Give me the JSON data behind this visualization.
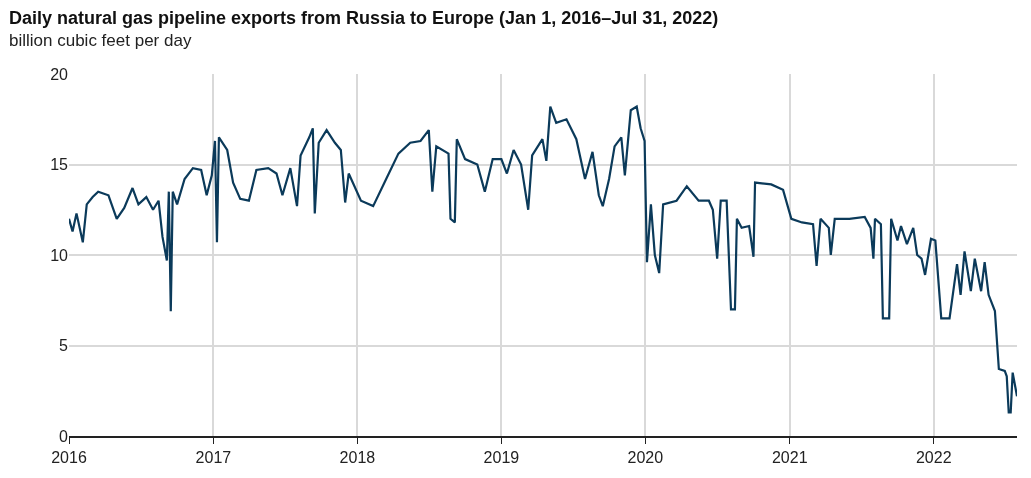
{
  "chart_data": {
    "type": "line",
    "title": "Daily natural gas pipeline exports from Russia to Europe (Jan 1, 2016–Jul 31, 2022)",
    "subtitle": "billion cubic feet per day",
    "x": [
      "2016-01-01",
      "2016-01-10",
      "2016-01-20",
      "2016-02-05",
      "2016-02-15",
      "2016-03-01",
      "2016-03-15",
      "2016-04-10",
      "2016-05-01",
      "2016-05-20",
      "2016-06-10",
      "2016-06-25",
      "2016-07-15",
      "2016-08-01",
      "2016-08-15",
      "2016-08-25",
      "2016-09-05",
      "2016-09-10",
      "2016-09-15",
      "2016-09-20",
      "2016-10-01",
      "2016-10-20",
      "2016-11-10",
      "2016-12-01",
      "2016-12-15",
      "2016-12-28",
      "2017-01-05",
      "2017-01-10",
      "2017-01-15",
      "2017-02-05",
      "2017-02-20",
      "2017-03-10",
      "2017-04-01",
      "2017-04-20",
      "2017-05-20",
      "2017-06-10",
      "2017-06-25",
      "2017-07-15",
      "2017-08-01",
      "2017-08-10",
      "2017-09-01",
      "2017-09-10",
      "2017-09-15",
      "2017-09-25",
      "2017-10-15",
      "2017-11-05",
      "2017-11-20",
      "2017-12-01",
      "2017-12-10",
      "2018-01-10",
      "2018-02-10",
      "2018-03-15",
      "2018-04-15",
      "2018-05-15",
      "2018-06-10",
      "2018-07-01",
      "2018-07-10",
      "2018-07-20",
      "2018-08-20",
      "2018-08-25",
      "2018-09-05",
      "2018-09-10",
      "2018-10-01",
      "2018-11-01",
      "2018-11-20",
      "2018-12-10",
      "2019-01-01",
      "2019-01-15",
      "2019-02-01",
      "2019-02-20",
      "2019-03-10",
      "2019-03-20",
      "2019-04-15",
      "2019-04-25",
      "2019-05-05",
      "2019-05-20",
      "2019-06-15",
      "2019-07-10",
      "2019-08-01",
      "2019-08-20",
      "2019-09-05",
      "2019-09-15",
      "2019-10-01",
      "2019-10-15",
      "2019-11-01",
      "2019-11-10",
      "2019-11-25",
      "2019-12-10",
      "2019-12-20",
      "2019-12-30",
      "2020-01-05",
      "2020-01-15",
      "2020-01-25",
      "2020-02-05",
      "2020-02-15",
      "2020-03-20",
      "2020-04-15",
      "2020-05-15",
      "2020-06-10",
      "2020-06-20",
      "2020-07-01",
      "2020-07-10",
      "2020-07-25",
      "2020-08-05",
      "2020-08-15",
      "2020-08-20",
      "2020-09-01",
      "2020-09-20",
      "2020-10-01",
      "2020-10-05",
      "2020-11-15",
      "2020-12-15",
      "2021-01-05",
      "2021-02-01",
      "2021-03-01",
      "2021-03-10",
      "2021-03-20",
      "2021-04-10",
      "2021-04-15",
      "2021-04-25",
      "2021-06-01",
      "2021-07-10",
      "2021-07-25",
      "2021-08-01",
      "2021-08-05",
      "2021-08-20",
      "2021-08-25",
      "2021-09-10",
      "2021-09-15",
      "2021-10-01",
      "2021-10-10",
      "2021-10-25",
      "2021-11-10",
      "2021-11-20",
      "2021-12-01",
      "2021-12-10",
      "2021-12-25",
      "2022-01-05",
      "2022-01-20",
      "2022-02-10",
      "2022-03-01",
      "2022-03-10",
      "2022-03-20",
      "2022-04-05",
      "2022-04-15",
      "2022-05-01",
      "2022-05-10",
      "2022-05-20",
      "2022-06-05",
      "2022-06-15",
      "2022-06-30",
      "2022-07-05",
      "2022-07-10",
      "2022-07-15",
      "2022-07-20",
      "2022-07-31"
    ],
    "series": [
      {
        "color": "#0b3a5a",
        "values": [
          12.0,
          11.3,
          12.3,
          10.7,
          12.8,
          13.2,
          13.5,
          13.3,
          12.0,
          12.6,
          13.7,
          12.8,
          13.2,
          12.5,
          13.0,
          11.0,
          9.7,
          13.5,
          6.9,
          13.5,
          12.8,
          14.2,
          14.8,
          14.7,
          13.3,
          14.4,
          16.3,
          10.7,
          16.5,
          15.8,
          14.0,
          13.1,
          13.0,
          14.7,
          14.8,
          14.5,
          13.3,
          14.8,
          12.7,
          15.5,
          16.5,
          17.0,
          12.3,
          16.2,
          16.9,
          16.2,
          15.8,
          12.9,
          14.5,
          13.0,
          12.7,
          14.2,
          15.6,
          16.2,
          16.3,
          16.9,
          13.5,
          16.0,
          15.6,
          12.0,
          11.8,
          16.4,
          15.3,
          15.0,
          13.5,
          15.3,
          15.3,
          14.5,
          15.8,
          15.0,
          12.5,
          15.5,
          16.4,
          15.2,
          18.2,
          17.3,
          17.5,
          16.4,
          14.2,
          15.7,
          13.3,
          12.7,
          14.2,
          16.0,
          16.5,
          14.4,
          18.0,
          18.2,
          17.0,
          16.3,
          9.6,
          12.8,
          10.0,
          9.0,
          12.8,
          13.0,
          13.8,
          13.0,
          13.0,
          12.5,
          9.8,
          13.0,
          13.0,
          7.0,
          7.0,
          12.0,
          11.5,
          11.6,
          9.9,
          14.0,
          13.9,
          13.6,
          12.0,
          11.8,
          11.7,
          9.4,
          12.0,
          11.5,
          10.0,
          12.0,
          12.0,
          12.1,
          11.5,
          9.8,
          12.0,
          11.7,
          6.5,
          6.5,
          12.0,
          10.8,
          11.6,
          10.6,
          11.5,
          10.0,
          9.8,
          8.9,
          10.9,
          10.8,
          6.5,
          6.5,
          9.5,
          7.8,
          10.2,
          8.0,
          9.8,
          8.0,
          9.6,
          7.8,
          6.9,
          3.7,
          3.6,
          3.3,
          1.3,
          1.3,
          3.5,
          2.2
        ]
      }
    ],
    "xlim": [
      "2016-01-01",
      "2022-07-31"
    ],
    "xticks": [
      "2016",
      "2017",
      "2018",
      "2019",
      "2020",
      "2021",
      "2022"
    ],
    "ylim": [
      0,
      20
    ],
    "yticks": [
      0,
      5,
      10,
      15,
      20
    ],
    "grid": true,
    "line_style": "solid",
    "marker": "none"
  }
}
